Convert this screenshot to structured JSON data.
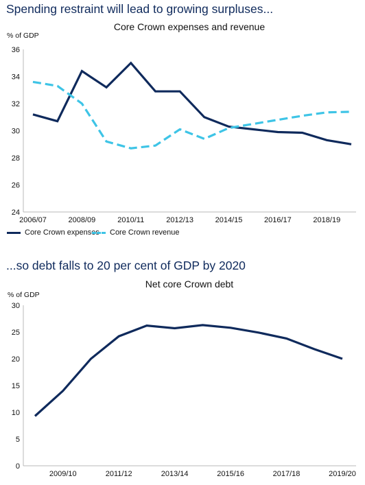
{
  "chart_data": [
    {
      "type": "line",
      "heading": "Spending restraint will lead to growing surpluses...",
      "title": "Core Crown expenses and revenue",
      "ylabel": "% of GDP",
      "ylim": [
        24,
        36
      ],
      "yticks": [
        24,
        26,
        28,
        30,
        32,
        34,
        36
      ],
      "x": [
        "2006/07",
        "2007/08",
        "2008/09",
        "2009/10",
        "2010/11",
        "2011/12",
        "2012/13",
        "2013/14",
        "2014/15",
        "2015/16",
        "2016/17",
        "2017/18",
        "2018/19",
        "2019/20"
      ],
      "xtick_labels": [
        "2006/07",
        "2008/09",
        "2010/11",
        "2012/13",
        "2014/15",
        "2016/17",
        "2018/19"
      ],
      "series": [
        {
          "name": "Core Crown expenses",
          "color": "#0f2a5c",
          "style": "solid",
          "values": [
            31.2,
            30.7,
            34.4,
            33.2,
            35.0,
            32.9,
            32.9,
            31.0,
            30.3,
            30.1,
            29.9,
            29.85,
            29.3,
            29.0
          ]
        },
        {
          "name": "Core Crown revenue",
          "color": "#3ec4e6",
          "style": "dashed",
          "values": [
            33.6,
            33.3,
            32.0,
            29.2,
            28.7,
            28.9,
            30.1,
            29.4,
            30.2,
            30.5,
            30.8,
            31.1,
            31.35,
            31.4
          ]
        }
      ],
      "legend": "bottom"
    },
    {
      "type": "line",
      "heading": "...so debt falls to 20 per cent of GDP by 2020",
      "title": "Net core Crown debt",
      "ylabel": "% of GDP",
      "ylim": [
        0,
        30
      ],
      "yticks": [
        0,
        5,
        10,
        15,
        20,
        25,
        30
      ],
      "x": [
        "2008/09",
        "2009/10",
        "2010/11",
        "2011/12",
        "2012/13",
        "2013/14",
        "2014/15",
        "2015/16",
        "2016/17",
        "2017/18",
        "2018/19",
        "2019/20"
      ],
      "xtick_labels": [
        "2009/10",
        "2011/12",
        "2013/14",
        "2015/16",
        "2017/18",
        "2019/20"
      ],
      "series": [
        {
          "color": "#0f2a5c",
          "style": "solid",
          "values": [
            9.3,
            14.0,
            20.0,
            24.2,
            26.2,
            25.7,
            26.3,
            25.8,
            24.9,
            23.8,
            21.8,
            20.0
          ]
        }
      ]
    }
  ]
}
